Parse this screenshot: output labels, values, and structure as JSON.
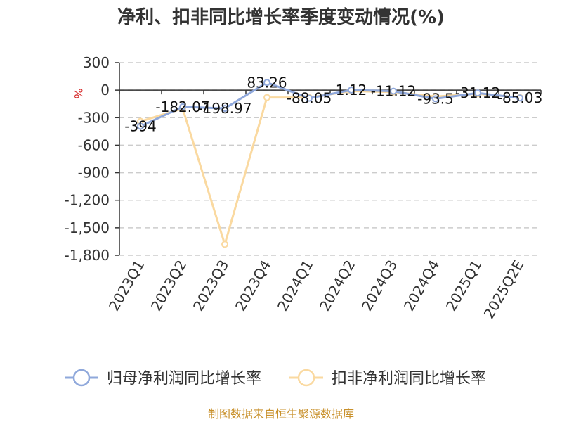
{
  "chart_data": {
    "type": "line",
    "title": "净利、扣非同比增长率季度变动情况(%)",
    "unit_label": "%",
    "categories": [
      "2023Q1",
      "2023Q2",
      "2023Q3",
      "2023Q4",
      "2024Q1",
      "2024Q2",
      "2024Q3",
      "2024Q4",
      "2025Q1",
      "2025Q2E"
    ],
    "ylim": [
      -1800,
      300
    ],
    "yticks": [
      300,
      0,
      -300,
      -600,
      -900,
      -1200,
      -1500,
      -1800
    ],
    "ytick_labels": [
      "300",
      "0",
      "-300",
      "-600",
      "-900",
      "-1,200",
      "-1,500",
      "-1,800"
    ],
    "grid": true,
    "legend_position": "bottom",
    "series": [
      {
        "name": "归母净利润同比增长率",
        "color": "#8fa8db",
        "values": [
          -394,
          -182.07,
          -198.97,
          83.26,
          -88.05,
          1.12,
          -11.12,
          -93.5,
          -31.12,
          -85.03
        ],
        "labels": [
          "-394",
          "-182.07",
          "-198.97",
          "83.26",
          "-88.05",
          "1.12",
          "-11.12",
          "-93.5",
          "-31.12",
          "-85.03"
        ]
      },
      {
        "name": "扣非净利润同比增长率",
        "color": "#fad9a0",
        "values": [
          -340,
          -200,
          -1680,
          -80,
          -80,
          -10,
          -20,
          -70,
          -40,
          -80
        ],
        "labels": []
      }
    ],
    "source": "制图数据来自恒生聚源数据库"
  }
}
